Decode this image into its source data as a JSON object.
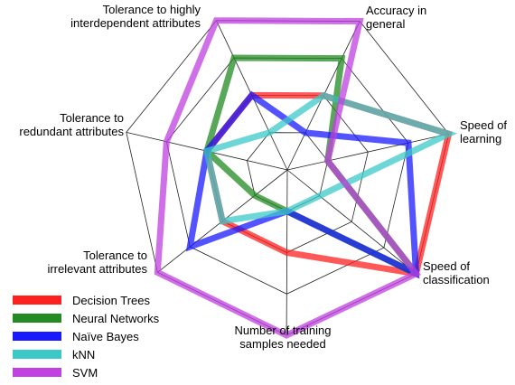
{
  "chart_data": {
    "type": "radar",
    "title": "",
    "axes": [
      {
        "label_lines": [
          "Accuracy in",
          "general"
        ]
      },
      {
        "label_lines": [
          "Speed of",
          "learning"
        ]
      },
      {
        "label_lines": [
          "Speed of",
          "classification"
        ]
      },
      {
        "label_lines": [
          "Number of training",
          "samples needed"
        ]
      },
      {
        "label_lines": [
          "Tolerance to",
          "irrelevant attributes"
        ]
      },
      {
        "label_lines": [
          "Tolerance to",
          "redundant attributes"
        ]
      },
      {
        "label_lines": [
          "Tolerance to highly",
          "interdependent attributes"
        ]
      }
    ],
    "scale": {
      "min": 0,
      "max": 4,
      "rings": 4
    },
    "legend_position": "bottom-left",
    "series": [
      {
        "name": "Decision Trees",
        "color": "#ff2020",
        "values": [
          2,
          4,
          4,
          2,
          2,
          2,
          2
        ]
      },
      {
        "name": "Neural Networks",
        "color": "#228b22",
        "values": [
          3,
          1,
          4,
          1,
          1,
          2,
          3
        ]
      },
      {
        "name": "Naïve Bayes",
        "color": "#1a1aff",
        "values": [
          1,
          3,
          4,
          1,
          3,
          2,
          2
        ]
      },
      {
        "name": "kNN",
        "color": "#3cc8c8",
        "values": [
          2,
          4,
          1,
          1,
          2,
          2,
          1
        ]
      },
      {
        "name": "SVM",
        "color": "#c040e0",
        "values": [
          4,
          1,
          4,
          4,
          4,
          3,
          4
        ]
      }
    ]
  }
}
